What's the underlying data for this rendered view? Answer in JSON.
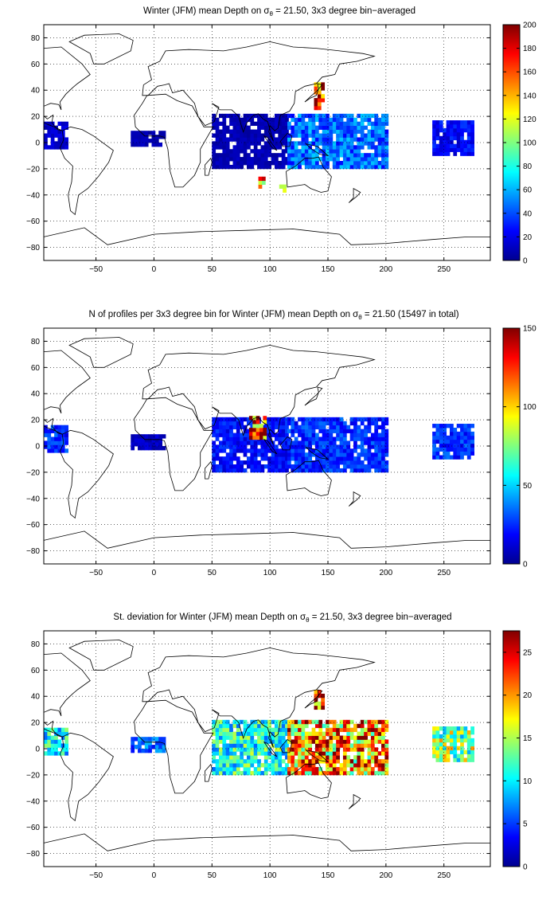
{
  "figure": {
    "panels": [
      {
        "title_pre": "Winter (JFM) mean Depth on σ",
        "title_sub": "θ",
        "title_post": " = 21.50, 3x3 degree bin−averaged",
        "colorbar_ticks": [
          "0",
          "20",
          "40",
          "60",
          "80",
          "100",
          "120",
          "140",
          "160",
          "180",
          "200"
        ]
      },
      {
        "title_pre": "N of profiles per 3x3 degree bin for Winter (JFM) mean Depth on σ",
        "title_sub": "θ",
        "title_post": " = 21.50 (15497 in total)",
        "colorbar_ticks": [
          "0",
          "50",
          "100",
          "150"
        ]
      },
      {
        "title_pre": "St. deviation for Winter (JFM) mean Depth on σ",
        "title_sub": "θ",
        "title_post": " = 21.50, 3x3 degree bin−averaged",
        "colorbar_ticks": [
          "0",
          "5",
          "10",
          "15",
          "20",
          "25"
        ]
      }
    ],
    "x_ticks": [
      "−50",
      "0",
      "50",
      "100",
      "150",
      "200",
      "250"
    ],
    "y_ticks": [
      "80",
      "60",
      "40",
      "20",
      "0",
      "−20",
      "−40",
      "−60",
      "−80"
    ]
  },
  "chart_data": [
    {
      "type": "heatmap",
      "title": "Winter (JFM) mean Depth on σθ = 21.50, 3x3 degree bin−averaged",
      "xlim": [
        -95,
        290
      ],
      "ylim": [
        -90,
        90
      ],
      "clim": [
        0,
        200
      ],
      "colormap": "jet",
      "grid": true,
      "regions": [
        {
          "name": "Eastern Pacific / Central America",
          "lon": [
            -95,
            -75
          ],
          "lat": [
            -5,
            15
          ],
          "value": 15
        },
        {
          "name": "Gulf of Guinea",
          "lon": [
            -20,
            10
          ],
          "lat": [
            -3,
            8
          ],
          "value": 10
        },
        {
          "name": "Indian Ocean",
          "lon": [
            50,
            115
          ],
          "lat": [
            -20,
            22
          ],
          "value": 10
        },
        {
          "name": "Western Pacific warm pool",
          "lon": [
            115,
            200
          ],
          "lat": [
            -20,
            20
          ],
          "value": 45
        },
        {
          "name": "Central Pacific",
          "lon": [
            240,
            275
          ],
          "lat": [
            -10,
            15
          ],
          "value": 25
        },
        {
          "name": "Kuroshio extension",
          "lon": [
            138,
            146
          ],
          "lat": [
            25,
            45
          ],
          "value": 195
        },
        {
          "name": "Southeast Indian Ocean",
          "lon": [
            90,
            95
          ],
          "lat": [
            -35,
            -27
          ],
          "value": 140
        },
        {
          "name": "Off western Australia",
          "lon": [
            108,
            112
          ],
          "lat": [
            -38,
            -34
          ],
          "value": 100
        }
      ]
    },
    {
      "type": "heatmap",
      "title": "N of profiles per 3x3 degree bin for Winter (JFM) mean Depth on σθ = 21.50 (15497 in total)",
      "xlim": [
        -95,
        290
      ],
      "ylim": [
        -90,
        90
      ],
      "clim": [
        0,
        150
      ],
      "colormap": "jet",
      "grid": true,
      "total_profiles": 15497,
      "regions": [
        {
          "name": "Eastern Pacific / Central America",
          "lon": [
            -95,
            -75
          ],
          "lat": [
            -5,
            15
          ],
          "value": 25
        },
        {
          "name": "Gulf of Guinea",
          "lon": [
            -20,
            10
          ],
          "lat": [
            -3,
            8
          ],
          "value": 10
        },
        {
          "name": "Indian Ocean",
          "lon": [
            50,
            115
          ],
          "lat": [
            -20,
            22
          ],
          "value": 20
        },
        {
          "name": "Bay of Bengal",
          "lon": [
            82,
            95
          ],
          "lat": [
            5,
            22
          ],
          "value": 130
        },
        {
          "name": "Western Pacific warm pool",
          "lon": [
            115,
            200
          ],
          "lat": [
            -20,
            20
          ],
          "value": 25
        },
        {
          "name": "Central Pacific",
          "lon": [
            240,
            275
          ],
          "lat": [
            -10,
            15
          ],
          "value": 25
        }
      ]
    },
    {
      "type": "heatmap",
      "title": "St. deviation for Winter (JFM) mean Depth onσθ = 21.50, 3x3 degree bin−averaged",
      "xlim": [
        -95,
        290
      ],
      "ylim": [
        -90,
        90
      ],
      "clim": [
        0,
        27.5
      ],
      "colormap": "jet",
      "grid": true,
      "regions": [
        {
          "name": "Eastern Pacific / Central America",
          "lon": [
            -95,
            -75
          ],
          "lat": [
            -5,
            15
          ],
          "value": 10
        },
        {
          "name": "Gulf of Guinea",
          "lon": [
            -20,
            10
          ],
          "lat": [
            -3,
            8
          ],
          "value": 6
        },
        {
          "name": "Indian Ocean",
          "lon": [
            50,
            115
          ],
          "lat": [
            -20,
            22
          ],
          "value": 11
        },
        {
          "name": "Western Pacific warm pool",
          "lon": [
            115,
            200
          ],
          "lat": [
            -20,
            20
          ],
          "value": 20
        },
        {
          "name": "Central Pacific",
          "lon": [
            240,
            275
          ],
          "lat": [
            -10,
            15
          ],
          "value": 14
        },
        {
          "name": "Kuroshio",
          "lon": [
            138,
            146
          ],
          "lat": [
            30,
            45
          ],
          "value": 25
        }
      ]
    }
  ]
}
